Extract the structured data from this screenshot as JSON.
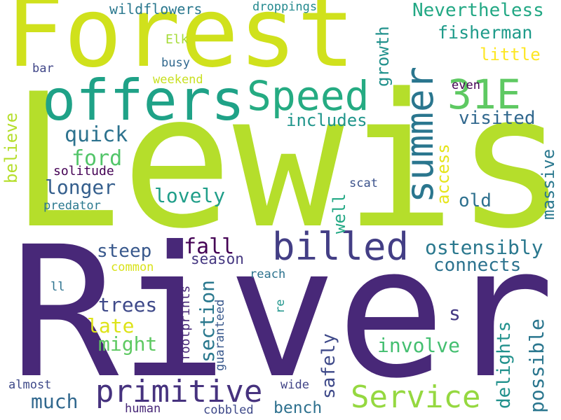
{
  "words": [
    {
      "text": "Lewis",
      "color": "#b5de2b"
    },
    {
      "text": "River",
      "color": "#482878"
    },
    {
      "text": "Forest",
      "color": "#d0e11c"
    },
    {
      "text": "offers",
      "color": "#1fa287"
    },
    {
      "text": "Speed",
      "color": "#25ab82"
    },
    {
      "text": "summer",
      "color": "#2a768e"
    },
    {
      "text": "31E",
      "color": "#5ec962"
    },
    {
      "text": "billed",
      "color": "#433e85"
    },
    {
      "text": "primitive",
      "color": "#46327e"
    },
    {
      "text": "Service",
      "color": "#95d840"
    },
    {
      "text": "fall",
      "color": "#440154"
    },
    {
      "text": "Nevertheless",
      "color": "#22a884"
    },
    {
      "text": "fisherman",
      "color": "#1e9b8a"
    },
    {
      "text": "wildflowers",
      "color": "#2a788e"
    },
    {
      "text": "droppings",
      "color": "#23898e"
    },
    {
      "text": "growth",
      "color": "#21918c"
    },
    {
      "text": "Elk",
      "color": "#a5db36"
    },
    {
      "text": "little",
      "color": "#fde725"
    },
    {
      "text": "busy",
      "color": "#31688e"
    },
    {
      "text": "weekend",
      "color": "#c8e020"
    },
    {
      "text": "bar",
      "color": "#404688"
    },
    {
      "text": "even",
      "color": "#440154"
    },
    {
      "text": "includes",
      "color": "#1f958b"
    },
    {
      "text": "visited",
      "color": "#31688e"
    },
    {
      "text": "quick",
      "color": "#2c728e"
    },
    {
      "text": "ford",
      "color": "#52c569"
    },
    {
      "text": "believe",
      "color": "#b5de2b"
    },
    {
      "text": "solitude",
      "color": "#440154"
    },
    {
      "text": "longer",
      "color": "#355f8d"
    },
    {
      "text": "access",
      "color": "#e5e419"
    },
    {
      "text": "massive",
      "color": "#2a788e"
    },
    {
      "text": "scat",
      "color": "#3b528b"
    },
    {
      "text": "lovely",
      "color": "#1f9e89"
    },
    {
      "text": "old",
      "color": "#2d708e"
    },
    {
      "text": "predator",
      "color": "#2a788e"
    },
    {
      "text": "well",
      "color": "#22a884"
    },
    {
      "text": "steep",
      "color": "#38588c"
    },
    {
      "text": "season",
      "color": "#453781"
    },
    {
      "text": "ostensibly",
      "color": "#2a788e"
    },
    {
      "text": "connects",
      "color": "#2c728e"
    },
    {
      "text": "common",
      "color": "#d8e219"
    },
    {
      "text": "section",
      "color": "#2a788e"
    },
    {
      "text": "reach",
      "color": "#2c728e"
    },
    {
      "text": "ll",
      "color": "#2c728e"
    },
    {
      "text": "trees",
      "color": "#3e4989"
    },
    {
      "text": "re",
      "color": "#1f958b"
    },
    {
      "text": "s",
      "color": "#443983"
    },
    {
      "text": "late",
      "color": "#dde318"
    },
    {
      "text": "might",
      "color": "#5ec962"
    },
    {
      "text": "delights",
      "color": "#21918c"
    },
    {
      "text": "possible",
      "color": "#2a768e"
    },
    {
      "text": "footprints",
      "color": "#482878"
    },
    {
      "text": "guaranteed",
      "color": "#38588c"
    },
    {
      "text": "safely",
      "color": "#3e4989"
    },
    {
      "text": "involve",
      "color": "#44bf70"
    },
    {
      "text": "much",
      "color": "#31688e"
    },
    {
      "text": "bench",
      "color": "#2d708e"
    },
    {
      "text": "almost",
      "color": "#3e4989"
    },
    {
      "text": "wide",
      "color": "#414487"
    },
    {
      "text": "human",
      "color": "#482878"
    },
    {
      "text": "cobbled",
      "color": "#3e4989"
    }
  ]
}
